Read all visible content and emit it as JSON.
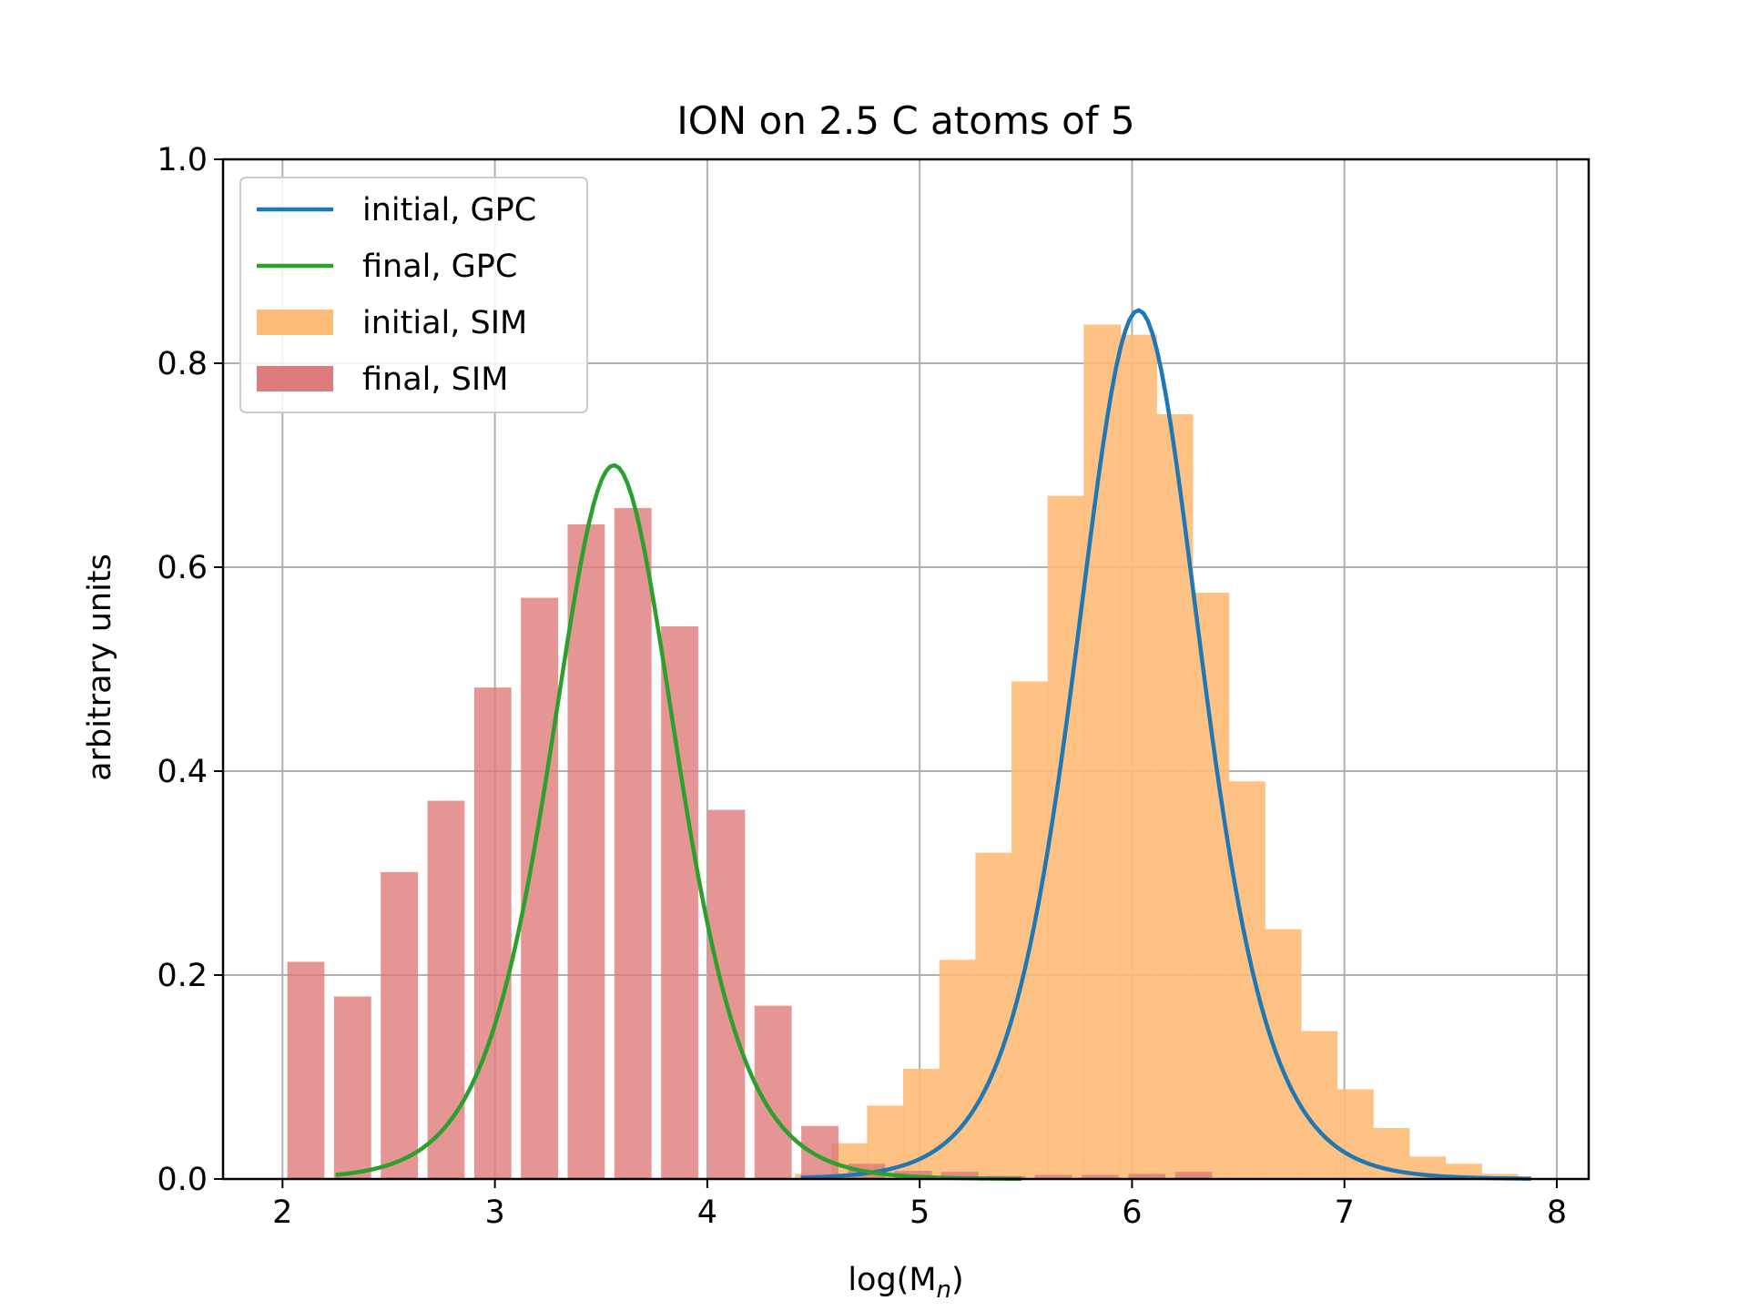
{
  "chart_data": {
    "type": "bar",
    "title": "ION on 2.5 C atoms of 5",
    "xlabel": "log(M",
    "xlabel_sub": "n",
    "xlabel_close": ")",
    "ylabel": "arbitrary units",
    "xlim": [
      1.72,
      8.15
    ],
    "ylim": [
      0.0,
      1.0
    ],
    "grid": true,
    "legend_position": "top-left",
    "x_ticks": [
      {
        "value": 2,
        "label": "2"
      },
      {
        "value": 3,
        "label": "3"
      },
      {
        "value": 4,
        "label": "4"
      },
      {
        "value": 5,
        "label": "5"
      },
      {
        "value": 6,
        "label": "6"
      },
      {
        "value": 7,
        "label": "7"
      },
      {
        "value": 8,
        "label": "8"
      }
    ],
    "y_ticks": [
      {
        "value": 0.0,
        "label": "0.0"
      },
      {
        "value": 0.2,
        "label": "0.2"
      },
      {
        "value": 0.4,
        "label": "0.4"
      },
      {
        "value": 0.6,
        "label": "0.6"
      },
      {
        "value": 0.8,
        "label": "0.8"
      },
      {
        "value": 1.0,
        "label": "1.0"
      }
    ],
    "bar_width": 0.175,
    "bar_series": [
      {
        "name": "initial, SIM",
        "color": "#ffbb78",
        "opacity": 0.9,
        "x": [
          4.5,
          4.67,
          4.84,
          5.01,
          5.18,
          5.35,
          5.52,
          5.69,
          5.86,
          6.03,
          6.2,
          6.37,
          6.54,
          6.71,
          6.88,
          7.05,
          7.22,
          7.39,
          7.56,
          7.73
        ],
        "values": [
          0.005,
          0.035,
          0.072,
          0.108,
          0.215,
          0.32,
          0.488,
          0.67,
          0.838,
          0.828,
          0.75,
          0.575,
          0.39,
          0.245,
          0.145,
          0.088,
          0.05,
          0.022,
          0.015,
          0.005
        ]
      },
      {
        "name": "final, SIM",
        "color": "#e07b7b",
        "opacity": 0.8,
        "x": [
          2.11,
          2.33,
          2.55,
          2.77,
          2.99,
          3.21,
          3.43,
          3.65,
          3.87,
          4.09,
          4.31,
          4.53,
          4.75,
          4.97,
          5.19,
          5.41,
          5.63,
          5.85,
          6.07,
          6.29
        ],
        "values": [
          0.213,
          0.179,
          0.301,
          0.371,
          0.482,
          0.57,
          0.642,
          0.658,
          0.542,
          0.362,
          0.17,
          0.052,
          0.015,
          0.008,
          0.007,
          0.003,
          0.004,
          0.004,
          0.005,
          0.007
        ]
      }
    ],
    "line_series": [
      {
        "name": "initial, GPC",
        "color": "#1f77b4",
        "peak": 0.852,
        "center": 6.03,
        "width": 0.4,
        "x_range": [
          4.45,
          7.87
        ]
      },
      {
        "name": "final, GPC",
        "color": "#2ca02c",
        "peak": 0.7,
        "center": 3.56,
        "width": 0.4,
        "x_range": [
          2.26,
          5.47
        ]
      }
    ],
    "legend": [
      {
        "label": "initial, GPC",
        "kind": "line",
        "color": "#1f77b4"
      },
      {
        "label": "final, GPC",
        "kind": "line",
        "color": "#2ca02c"
      },
      {
        "label": "initial, SIM",
        "kind": "patch",
        "color": "#ffbb78"
      },
      {
        "label": "final, SIM",
        "kind": "patch",
        "color": "#e07b7b"
      }
    ]
  }
}
